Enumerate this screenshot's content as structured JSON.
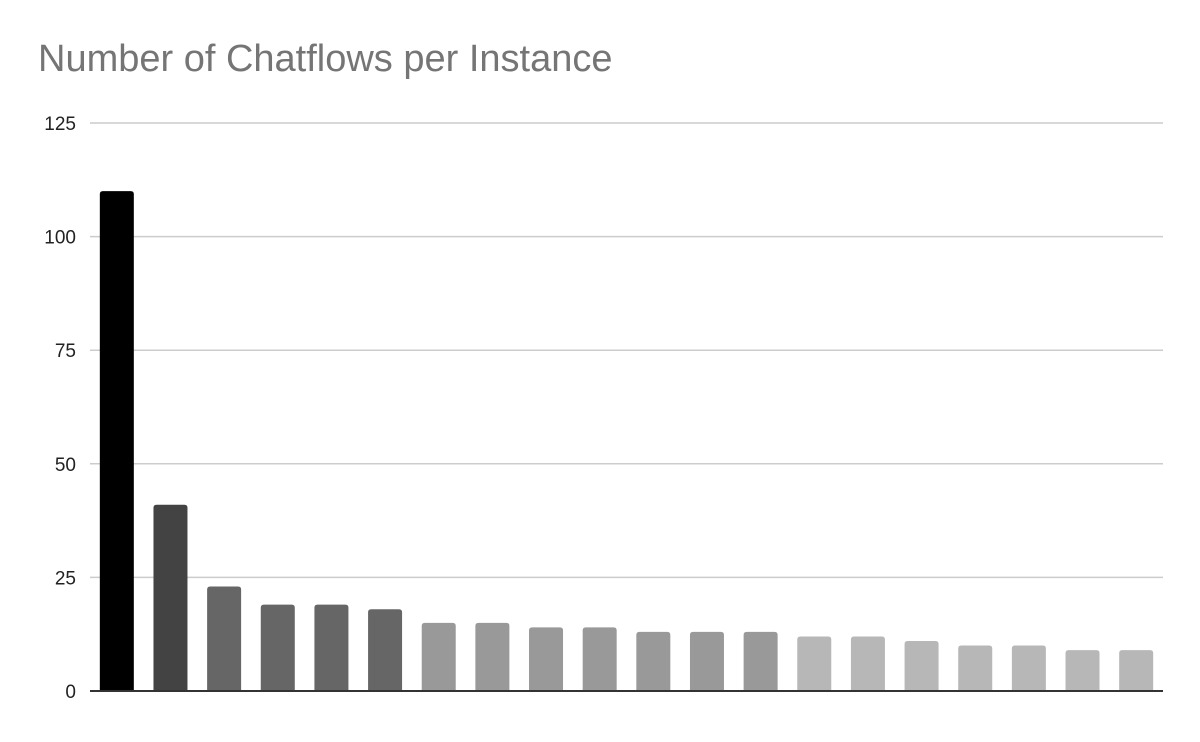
{
  "chart_data": {
    "type": "bar",
    "title": "Number of Chatflows per Instance",
    "xlabel": "",
    "ylabel": "",
    "ylim": [
      0,
      125
    ],
    "yticks": [
      0,
      25,
      50,
      75,
      100,
      125
    ],
    "grid": true,
    "legend": "none",
    "values": [
      110,
      41,
      23,
      19,
      19,
      18,
      15,
      15,
      14,
      14,
      13,
      13,
      13,
      12,
      12,
      11,
      10,
      10,
      9,
      9
    ],
    "colors": [
      "#000000",
      "#434343",
      "#666666",
      "#666666",
      "#666666",
      "#666666",
      "#999999",
      "#999999",
      "#999999",
      "#999999",
      "#999999",
      "#999999",
      "#999999",
      "#b7b7b7",
      "#b7b7b7",
      "#b7b7b7",
      "#b7b7b7",
      "#b7b7b7",
      "#b7b7b7",
      "#b7b7b7"
    ],
    "grid_color": "#cccccc",
    "axis_color": "#333333"
  }
}
